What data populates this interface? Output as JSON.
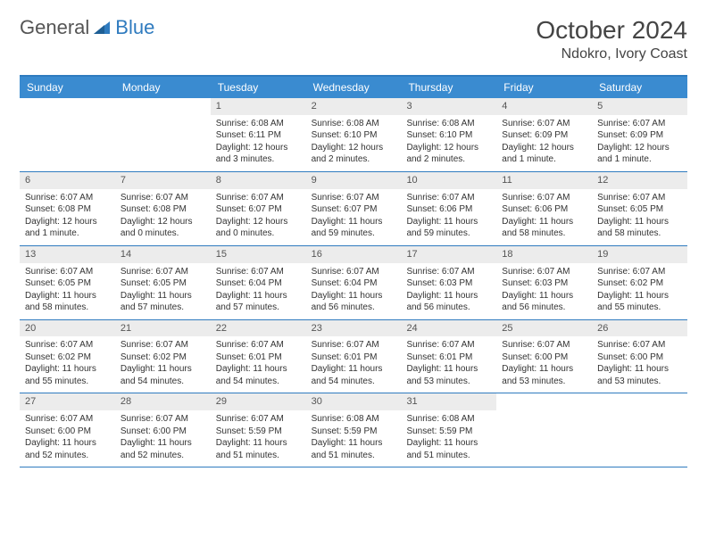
{
  "brand": {
    "part1": "General",
    "part2": "Blue"
  },
  "title": "October 2024",
  "location": "Ndokro, Ivory Coast",
  "colors": {
    "header_bg": "#3a8bd0",
    "header_border": "#2f7bbf",
    "daynum_bg": "#ececec",
    "text": "#333333",
    "page_bg": "#ffffff"
  },
  "day_names": [
    "Sunday",
    "Monday",
    "Tuesday",
    "Wednesday",
    "Thursday",
    "Friday",
    "Saturday"
  ],
  "weeks": [
    [
      {
        "empty": true
      },
      {
        "empty": true
      },
      {
        "num": "1",
        "sunrise": "Sunrise: 6:08 AM",
        "sunset": "Sunset: 6:11 PM",
        "daylight": "Daylight: 12 hours and 3 minutes."
      },
      {
        "num": "2",
        "sunrise": "Sunrise: 6:08 AM",
        "sunset": "Sunset: 6:10 PM",
        "daylight": "Daylight: 12 hours and 2 minutes."
      },
      {
        "num": "3",
        "sunrise": "Sunrise: 6:08 AM",
        "sunset": "Sunset: 6:10 PM",
        "daylight": "Daylight: 12 hours and 2 minutes."
      },
      {
        "num": "4",
        "sunrise": "Sunrise: 6:07 AM",
        "sunset": "Sunset: 6:09 PM",
        "daylight": "Daylight: 12 hours and 1 minute."
      },
      {
        "num": "5",
        "sunrise": "Sunrise: 6:07 AM",
        "sunset": "Sunset: 6:09 PM",
        "daylight": "Daylight: 12 hours and 1 minute."
      }
    ],
    [
      {
        "num": "6",
        "sunrise": "Sunrise: 6:07 AM",
        "sunset": "Sunset: 6:08 PM",
        "daylight": "Daylight: 12 hours and 1 minute."
      },
      {
        "num": "7",
        "sunrise": "Sunrise: 6:07 AM",
        "sunset": "Sunset: 6:08 PM",
        "daylight": "Daylight: 12 hours and 0 minutes."
      },
      {
        "num": "8",
        "sunrise": "Sunrise: 6:07 AM",
        "sunset": "Sunset: 6:07 PM",
        "daylight": "Daylight: 12 hours and 0 minutes."
      },
      {
        "num": "9",
        "sunrise": "Sunrise: 6:07 AM",
        "sunset": "Sunset: 6:07 PM",
        "daylight": "Daylight: 11 hours and 59 minutes."
      },
      {
        "num": "10",
        "sunrise": "Sunrise: 6:07 AM",
        "sunset": "Sunset: 6:06 PM",
        "daylight": "Daylight: 11 hours and 59 minutes."
      },
      {
        "num": "11",
        "sunrise": "Sunrise: 6:07 AM",
        "sunset": "Sunset: 6:06 PM",
        "daylight": "Daylight: 11 hours and 58 minutes."
      },
      {
        "num": "12",
        "sunrise": "Sunrise: 6:07 AM",
        "sunset": "Sunset: 6:05 PM",
        "daylight": "Daylight: 11 hours and 58 minutes."
      }
    ],
    [
      {
        "num": "13",
        "sunrise": "Sunrise: 6:07 AM",
        "sunset": "Sunset: 6:05 PM",
        "daylight": "Daylight: 11 hours and 58 minutes."
      },
      {
        "num": "14",
        "sunrise": "Sunrise: 6:07 AM",
        "sunset": "Sunset: 6:05 PM",
        "daylight": "Daylight: 11 hours and 57 minutes."
      },
      {
        "num": "15",
        "sunrise": "Sunrise: 6:07 AM",
        "sunset": "Sunset: 6:04 PM",
        "daylight": "Daylight: 11 hours and 57 minutes."
      },
      {
        "num": "16",
        "sunrise": "Sunrise: 6:07 AM",
        "sunset": "Sunset: 6:04 PM",
        "daylight": "Daylight: 11 hours and 56 minutes."
      },
      {
        "num": "17",
        "sunrise": "Sunrise: 6:07 AM",
        "sunset": "Sunset: 6:03 PM",
        "daylight": "Daylight: 11 hours and 56 minutes."
      },
      {
        "num": "18",
        "sunrise": "Sunrise: 6:07 AM",
        "sunset": "Sunset: 6:03 PM",
        "daylight": "Daylight: 11 hours and 56 minutes."
      },
      {
        "num": "19",
        "sunrise": "Sunrise: 6:07 AM",
        "sunset": "Sunset: 6:02 PM",
        "daylight": "Daylight: 11 hours and 55 minutes."
      }
    ],
    [
      {
        "num": "20",
        "sunrise": "Sunrise: 6:07 AM",
        "sunset": "Sunset: 6:02 PM",
        "daylight": "Daylight: 11 hours and 55 minutes."
      },
      {
        "num": "21",
        "sunrise": "Sunrise: 6:07 AM",
        "sunset": "Sunset: 6:02 PM",
        "daylight": "Daylight: 11 hours and 54 minutes."
      },
      {
        "num": "22",
        "sunrise": "Sunrise: 6:07 AM",
        "sunset": "Sunset: 6:01 PM",
        "daylight": "Daylight: 11 hours and 54 minutes."
      },
      {
        "num": "23",
        "sunrise": "Sunrise: 6:07 AM",
        "sunset": "Sunset: 6:01 PM",
        "daylight": "Daylight: 11 hours and 54 minutes."
      },
      {
        "num": "24",
        "sunrise": "Sunrise: 6:07 AM",
        "sunset": "Sunset: 6:01 PM",
        "daylight": "Daylight: 11 hours and 53 minutes."
      },
      {
        "num": "25",
        "sunrise": "Sunrise: 6:07 AM",
        "sunset": "Sunset: 6:00 PM",
        "daylight": "Daylight: 11 hours and 53 minutes."
      },
      {
        "num": "26",
        "sunrise": "Sunrise: 6:07 AM",
        "sunset": "Sunset: 6:00 PM",
        "daylight": "Daylight: 11 hours and 53 minutes."
      }
    ],
    [
      {
        "num": "27",
        "sunrise": "Sunrise: 6:07 AM",
        "sunset": "Sunset: 6:00 PM",
        "daylight": "Daylight: 11 hours and 52 minutes."
      },
      {
        "num": "28",
        "sunrise": "Sunrise: 6:07 AM",
        "sunset": "Sunset: 6:00 PM",
        "daylight": "Daylight: 11 hours and 52 minutes."
      },
      {
        "num": "29",
        "sunrise": "Sunrise: 6:07 AM",
        "sunset": "Sunset: 5:59 PM",
        "daylight": "Daylight: 11 hours and 51 minutes."
      },
      {
        "num": "30",
        "sunrise": "Sunrise: 6:08 AM",
        "sunset": "Sunset: 5:59 PM",
        "daylight": "Daylight: 11 hours and 51 minutes."
      },
      {
        "num": "31",
        "sunrise": "Sunrise: 6:08 AM",
        "sunset": "Sunset: 5:59 PM",
        "daylight": "Daylight: 11 hours and 51 minutes."
      },
      {
        "empty": true
      },
      {
        "empty": true
      }
    ]
  ]
}
